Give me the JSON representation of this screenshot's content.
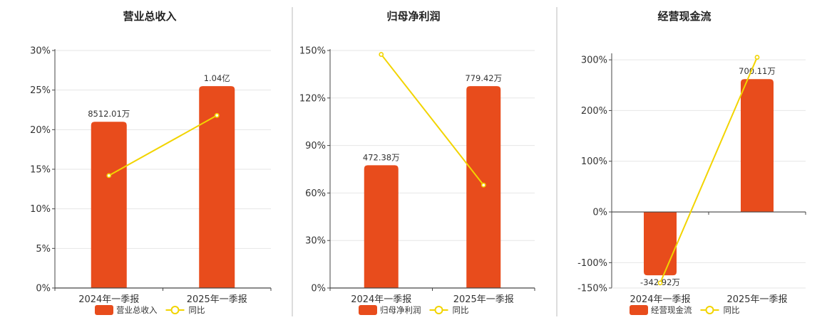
{
  "colors": {
    "bar": "#E84C1C",
    "line": "#F2D400",
    "axis": "#444444",
    "grid": "#E6E6E6",
    "divider": "#BBBBBB"
  },
  "legend": {
    "line_label": "同比"
  },
  "chart_data": [
    {
      "type": "bar",
      "title": "营业总收入",
      "categories": [
        "2024年一季报",
        "2025年一季报"
      ],
      "series": [
        {
          "name": "营业总收入",
          "type": "bar",
          "labels": [
            "8512.01万",
            "1.04亿"
          ],
          "values": [
            21,
            25.5
          ]
        },
        {
          "name": "同比",
          "type": "line",
          "values": [
            14.2,
            21.8
          ]
        }
      ],
      "yticks": [
        "0%",
        "5%",
        "10%",
        "15%",
        "20%",
        "25%",
        "30%"
      ],
      "ylim": [
        0,
        30
      ]
    },
    {
      "type": "bar",
      "title": "归母净利润",
      "categories": [
        "2024年一季报",
        "2025年一季报"
      ],
      "series": [
        {
          "name": "归母净利润",
          "type": "bar",
          "labels": [
            "472.38万",
            "779.42万"
          ],
          "values": [
            77.5,
            127.5
          ]
        },
        {
          "name": "同比",
          "type": "line",
          "values": [
            147.5,
            65
          ]
        }
      ],
      "yticks": [
        "0%",
        "30%",
        "60%",
        "90%",
        "120%",
        "150%"
      ],
      "ylim": [
        0,
        150
      ]
    },
    {
      "type": "bar",
      "title": "经营现金流",
      "categories": [
        "2024年一季报",
        "2025年一季报"
      ],
      "series": [
        {
          "name": "经营现金流",
          "type": "bar",
          "labels": [
            "-342.92万",
            "700.11万"
          ],
          "values": [
            -125,
            262
          ]
        },
        {
          "name": "同比",
          "type": "line",
          "values": [
            -140,
            305
          ]
        }
      ],
      "yticks": [
        "-150%",
        "-100%",
        "0%",
        "100%",
        "200%",
        "300%"
      ],
      "ylim": [
        -150,
        310
      ]
    }
  ]
}
